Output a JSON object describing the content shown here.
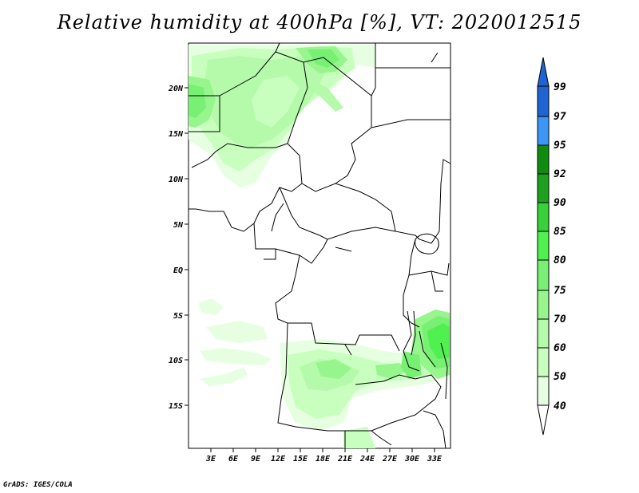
{
  "title": "Relative humidity at 400hPa [%], VT: 2020012515",
  "footer": "GrADS: IGES/COLA",
  "map": {
    "lon_labels": [
      "3E",
      "6E",
      "9E",
      "12E",
      "15E",
      "18E",
      "21E",
      "24E",
      "27E",
      "30E",
      "33E"
    ],
    "lat_labels": [
      "20N",
      "15N",
      "10N",
      "5N",
      "EQ",
      "5S",
      "10S",
      "15S"
    ]
  },
  "colorbar": {
    "labels": [
      "99",
      "97",
      "95",
      "92",
      "90",
      "85",
      "80",
      "75",
      "70",
      "60",
      "50",
      "40"
    ],
    "colors": [
      "#1e64d2",
      "#1e64d2",
      "#3c96f5",
      "#0f8c0f",
      "#1ea01e",
      "#37d237",
      "#50f050",
      "#78f073",
      "#96f58c",
      "#b4faaa",
      "#c8ffbe",
      "#e6ffe1"
    ]
  },
  "colors": {
    "green_light": "#c8ffbe",
    "green_mid": "#96f58c",
    "green_dark": "#50f050"
  }
}
